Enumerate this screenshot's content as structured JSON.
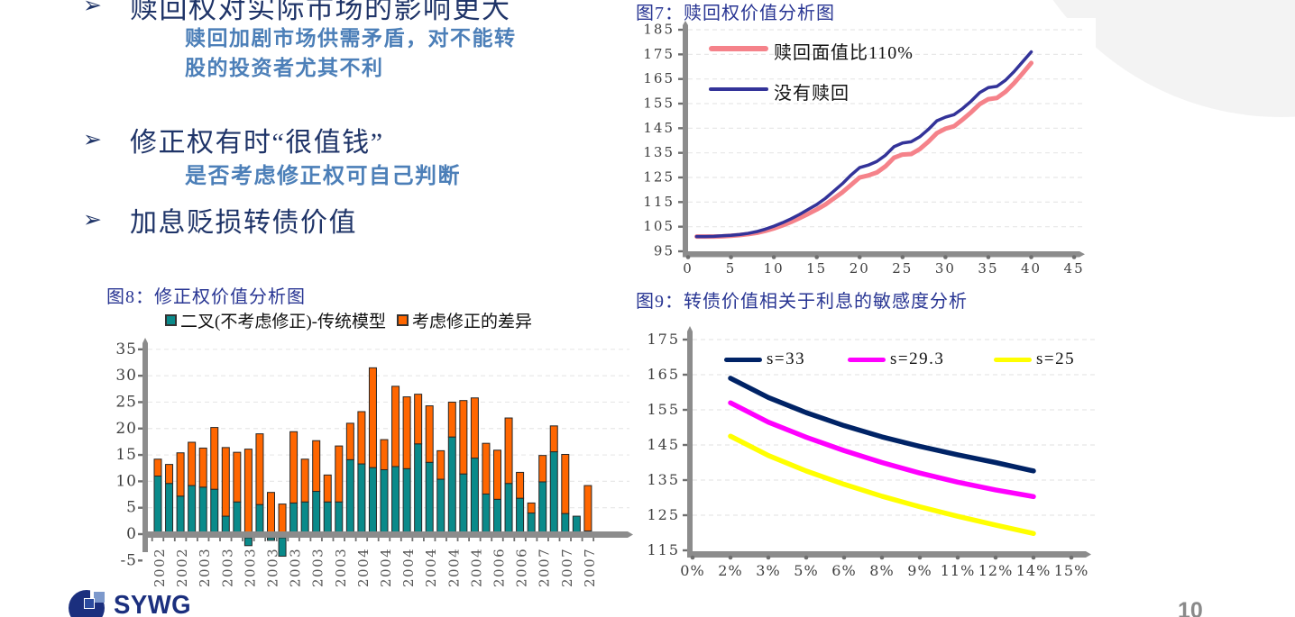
{
  "bullets": [
    {
      "arrow": "➢",
      "label": "赎回权对实际市场的影响更大",
      "subs": "赎回加剧市场供需矛盾，对不能转\n股的投资者尤其不利"
    },
    {
      "arrow": "➢",
      "label": "修正权有时“很值钱”",
      "subs": "是否考虑修正权可自己判断"
    },
    {
      "arrow": "➢",
      "label": "加息贬损转债价值",
      "subs": ""
    }
  ],
  "logo": {
    "text": "SYWG"
  },
  "footer": {
    "page_number": "10"
  },
  "colors": {
    "title_navy": "#283593",
    "bullet_navy": "#1F3468",
    "bullet_steelblue": "#4C7FB8",
    "axis_gray": "#8C8C8C",
    "tick_gray": "#6F6F6F",
    "grid_gray": "#E8E8E8"
  },
  "chart_data": [
    {
      "id": "fig7",
      "type": "line",
      "title": "图7：赎回权价值分析图",
      "xlim": [
        0,
        45
      ],
      "ylim": [
        95,
        185
      ],
      "x_ticks": [
        0,
        5,
        10,
        15,
        20,
        25,
        30,
        35,
        40,
        45
      ],
      "y_ticks": [
        95,
        105,
        115,
        125,
        135,
        145,
        155,
        165,
        175,
        185
      ],
      "grid": "dashed-horizontal",
      "legend_position": "top-left",
      "x_start": 1,
      "series": [
        {
          "name": "赎回面值比110%",
          "color": "#F5828A",
          "width": 5,
          "values": [
            101.0,
            101.0,
            101.0,
            101.1,
            101.3,
            101.6,
            102.0,
            102.5,
            103.3,
            104.3,
            105.5,
            106.9,
            108.5,
            110.2,
            112.0,
            114.0,
            116.5,
            119.0,
            122.0,
            125.0,
            125.8,
            127.0,
            129.5,
            133.0,
            134.3,
            134.5,
            136.5,
            139.5,
            143.0,
            144.8,
            145.8,
            148.5,
            151.5,
            154.8,
            156.8,
            157.3,
            159.8,
            163.3,
            167.3,
            171.5
          ]
        },
        {
          "name": "没有赎回",
          "color": "#333399",
          "width": 3.5,
          "values": [
            101.0,
            101.0,
            101.1,
            101.3,
            101.5,
            101.8,
            102.3,
            103.0,
            104.0,
            105.2,
            106.6,
            108.2,
            110.0,
            112.0,
            114.0,
            116.5,
            119.5,
            122.5,
            126.0,
            129.0,
            130.0,
            131.5,
            134.0,
            137.5,
            139.0,
            139.5,
            141.5,
            144.5,
            148.0,
            149.5,
            150.5,
            153.0,
            156.0,
            159.5,
            161.5,
            162.0,
            164.5,
            168.0,
            172.0,
            176.0
          ]
        }
      ]
    },
    {
      "id": "fig8",
      "type": "stacked-bar",
      "title": "图8：修正权价值分析图",
      "ylim": [
        -5,
        35
      ],
      "y_ticks": [
        -5,
        0,
        5,
        10,
        15,
        20,
        25,
        30,
        35
      ],
      "grid": "dashed-horizontal",
      "x_labels": [
        "2002",
        "2002",
        "2003",
        "2003",
        "2003",
        "2003",
        "2003",
        "2003",
        "2003",
        "2004",
        "2004",
        "2004",
        "2004",
        "2004",
        "2004",
        "2006",
        "2006",
        "2007",
        "2007",
        "2007"
      ],
      "x_label_every_other_bar": true,
      "series": [
        {
          "name": "二叉(不考虑修正)-传统模型",
          "color": "#0A8A8A",
          "values": [
            11.0,
            9.6,
            7.2,
            9.2,
            8.9,
            8.5,
            3.4,
            6.1,
            -1.5,
            5.6,
            -0.5,
            -3.5,
            5.9,
            6.1,
            8.1,
            6.1,
            6.1,
            14.1,
            13.3,
            12.6,
            12.2,
            12.8,
            12.4,
            17.1,
            13.6,
            10.4,
            18.4,
            11.4,
            14.4,
            7.6,
            6.6,
            9.6,
            6.8,
            4.0,
            9.9,
            15.6,
            3.9,
            3.4,
            0.6
          ]
        },
        {
          "name": "考虑修正的差异",
          "color": "#FF6600",
          "values": [
            3.2,
            3.6,
            8.2,
            8.2,
            7.4,
            11.7,
            13.0,
            9.4,
            16.1,
            13.4,
            7.9,
            5.7,
            13.5,
            8.1,
            9.6,
            5.1,
            10.6,
            6.9,
            9.9,
            18.9,
            5.7,
            15.2,
            13.6,
            9.4,
            10.7,
            5.4,
            6.6,
            13.9,
            11.4,
            9.6,
            9.3,
            12.4,
            4.9,
            1.9,
            5.0,
            4.9,
            11.2,
            0.0,
            8.6
          ]
        }
      ]
    },
    {
      "id": "fig9",
      "type": "line",
      "title": "图9：转债价值相关于利息的敏感度分析",
      "ylim": [
        115,
        175
      ],
      "y_ticks": [
        115,
        125,
        135,
        145,
        155,
        165,
        175
      ],
      "x_tick_labels": [
        "0%",
        "2%",
        "3%",
        "5%",
        "6%",
        "8%",
        "9%",
        "11%",
        "12%",
        "14%",
        "15%"
      ],
      "grid": "dashed-horizontal",
      "legend_position": "top-inside",
      "series_start_tick_index": 1,
      "series": [
        {
          "name": "s=33",
          "color": "#002366",
          "width": 5.5,
          "values": [
            164.0,
            158.5,
            154.2,
            150.5,
            147.3,
            144.6,
            142.2,
            140.0,
            137.6
          ]
        },
        {
          "name": "s=29.3",
          "color": "#FF00FF",
          "width": 5.5,
          "values": [
            157.0,
            151.5,
            147.2,
            143.4,
            140.0,
            137.0,
            134.4,
            132.2,
            130.3
          ]
        },
        {
          "name": "s=25",
          "color": "#FFFF00",
          "width": 5.5,
          "values": [
            147.5,
            142.0,
            137.6,
            133.8,
            130.4,
            127.4,
            124.7,
            122.2,
            119.8
          ]
        }
      ]
    }
  ]
}
